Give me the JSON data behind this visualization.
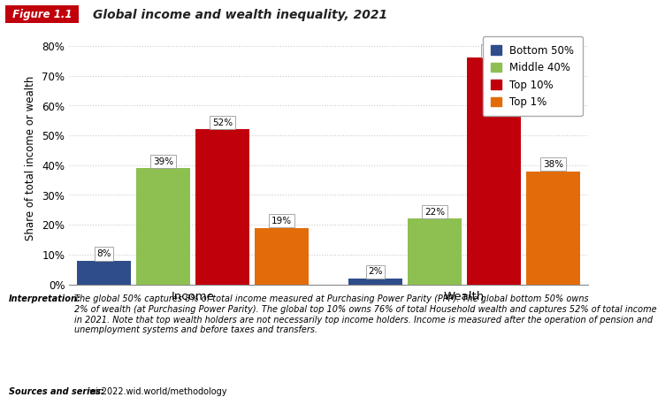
{
  "title": "Global income and wealth inequality, 2021",
  "figure_label": "Figure 1.1",
  "ylabel": "Share of total income or wealth",
  "categories": [
    "Income",
    "Wealth"
  ],
  "groups": [
    "Bottom 50%",
    "Middle 40%",
    "Top 10%",
    "Top 1%"
  ],
  "values": {
    "Income": [
      8,
      39,
      52,
      19
    ],
    "Wealth": [
      2,
      22,
      76,
      38
    ]
  },
  "colors": [
    "#2e4d8a",
    "#8dc050",
    "#c0000b",
    "#e36c0a"
  ],
  "bar_width": 0.12,
  "ylim": [
    0,
    85
  ],
  "yticks": [
    0,
    10,
    20,
    30,
    40,
    50,
    60,
    70,
    80
  ],
  "ytick_labels": [
    "0%",
    "10%",
    "20%",
    "30%",
    "40%",
    "50%",
    "60%",
    "70%",
    "80%"
  ],
  "background_color": "#ffffff",
  "grid_color": "#cccccc",
  "annotation_fontsize": 7.5,
  "axis_fontsize": 8.5,
  "title_fontsize": 10,
  "legend_fontsize": 8.5,
  "cat_centers": [
    0.3,
    0.85
  ],
  "xlim": [
    0.05,
    1.1
  ],
  "footer_text": "The global 50% captures 8% of total income measured at Purchasing Power Parity (PPP). The global bottom 50% owns\n2% of wealth (at Purchasing Power Parity). The global top 10% owns 76% of total Household wealth and captures 52% of total income\nin 2021. Note that top wealth holders are not necessarily top income holders. Income is measured after the operation of pension and\nunemployment systems and before taxes and transfers.",
  "footer_sources": "wir2022.wid.world/methodology"
}
